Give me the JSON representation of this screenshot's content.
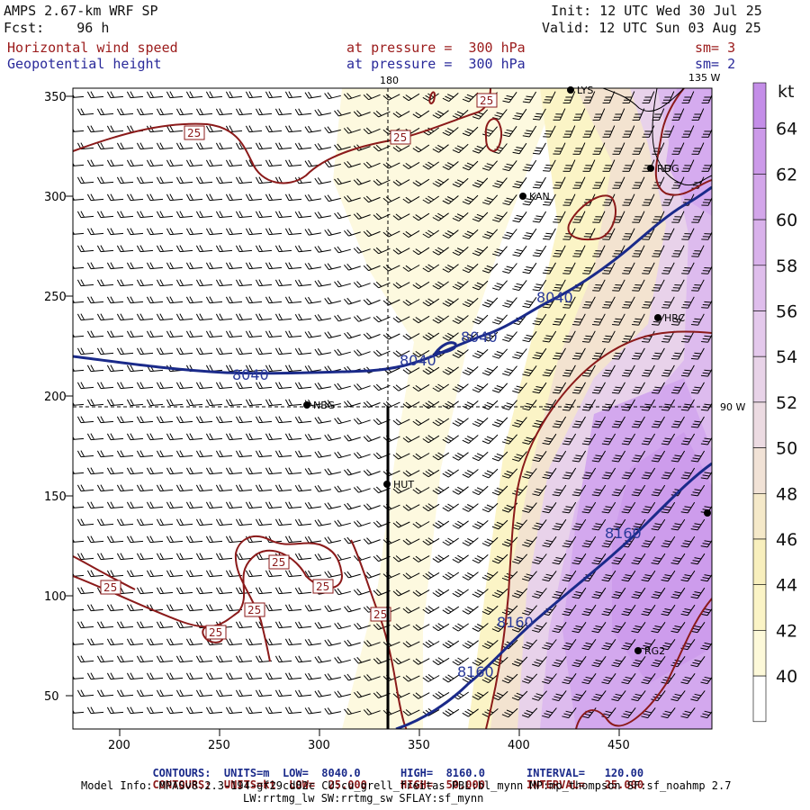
{
  "header": {
    "model": "AMPS 2.67-km WRF SP",
    "forecast": "Fcst:    96 h",
    "init": "Init: 12 UTC Wed 30 Jul 25",
    "valid": "Valid: 12 UTC Sun 03 Aug 25",
    "field1": "Horizontal wind speed",
    "field1_level": "at pressure =  300 hPa",
    "field1_sm": "sm= 3",
    "field2": "Geopotential height",
    "field2_level": "at pressure =  300 hPa",
    "field2_sm": "sm= 2"
  },
  "map": {
    "x_ticks": [
      "200",
      "250",
      "300",
      "350",
      "400",
      "450"
    ],
    "y_ticks": [
      "350",
      "300",
      "250",
      "200",
      "150",
      "100",
      "50"
    ],
    "meridian_labels": [
      "180",
      "135 W",
      "90 W"
    ],
    "stations": [
      "LYS",
      "RDG",
      "KAN",
      "HRC",
      "NBG",
      "HUT",
      "RG2"
    ],
    "height_contours": [
      {
        "label": "8040",
        "value": 8040
      },
      {
        "label": "8160",
        "value": 8160
      }
    ],
    "speed_contour_label": "25",
    "colors": {
      "height_contour": "#1a2a8a",
      "speed_contour": "#8b1a1a",
      "wind_barb": "#000000"
    }
  },
  "colorbar": {
    "unit": "kt",
    "labels": [
      "64",
      "62",
      "60",
      "58",
      "56",
      "54",
      "52",
      "50",
      "48",
      "46",
      "44",
      "42",
      "40"
    ],
    "colors": [
      "#c48ee8",
      "#cc9ae9",
      "#d3a6ea",
      "#d9b2eb",
      "#dfbeec",
      "#e4c9ec",
      "#e8d3e8",
      "#ecdbe2",
      "#f1e2d6",
      "#f5e9c9",
      "#f8efbd",
      "#fbf4c6",
      "#fdf9d9",
      "#ffffff"
    ]
  },
  "footer": {
    "line1_a": "CONTOURS:  UNITS=m  LOW=  8040.0",
    "line1_b": "HIGH=  8160.0",
    "line1_c": "INTERVAL=   120.00",
    "line2_a": "CONTOURS:  UNITS=kt  LOW=  25.000",
    "line2_b": "HIGH=  50.000",
    "line2_c": "INTERVAL=   25.000",
    "line3": "Model Info: MPASv8.2.3-194-gf29cd82c CU:cu_grell_freitas PBL:bl_mynn MP:mp_thompson SF:sf_noahmp 2.7",
    "line4": "LW:rrtmg_lw SW:rrtmg_sw SFLAY:sf_mynn"
  }
}
